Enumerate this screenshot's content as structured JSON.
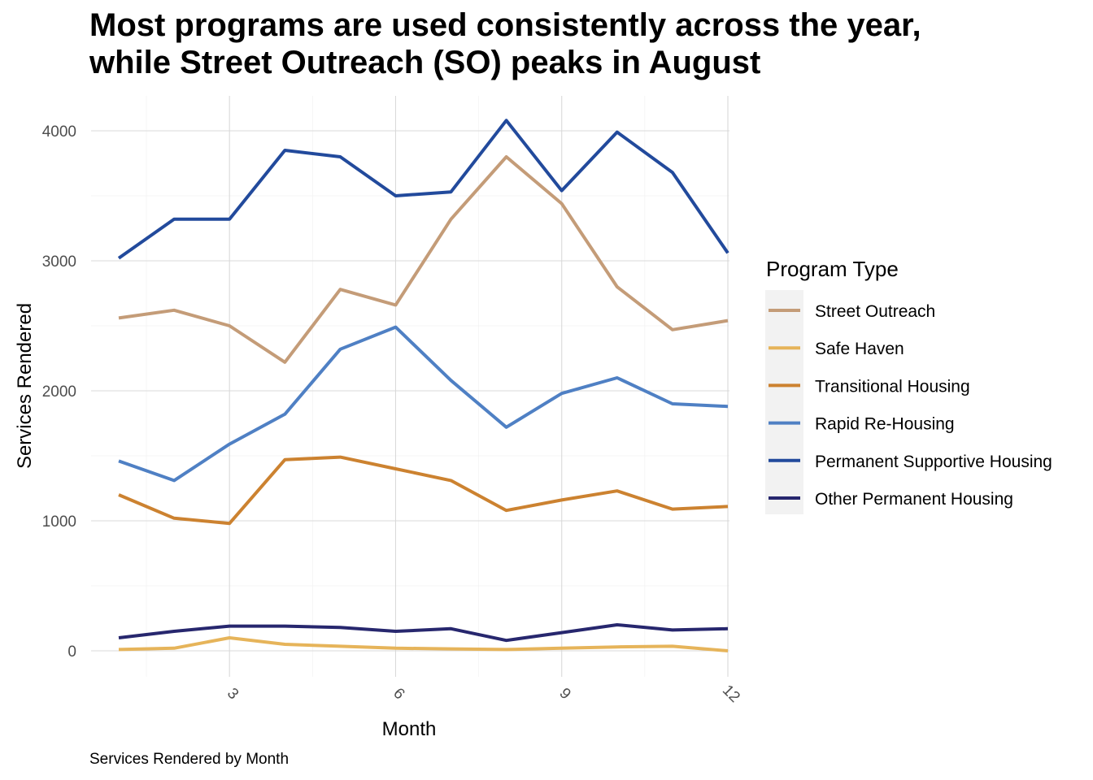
{
  "chart_data": {
    "type": "line",
    "title_lines": [
      "Most programs are used consistently across the year,",
      "while Street Outreach (SO) peaks in August"
    ],
    "caption": "Services Rendered by Month",
    "xlabel": "Month",
    "ylabel": "Services Rendered",
    "x": [
      1,
      2,
      3,
      4,
      5,
      6,
      7,
      8,
      9,
      10,
      11,
      12
    ],
    "x_ticks": [
      3,
      6,
      9,
      12
    ],
    "y_ticks": [
      0,
      1000,
      2000,
      3000,
      4000
    ],
    "xlim": [
      0.5,
      12
    ],
    "ylim": [
      -200,
      4270
    ],
    "grid": true,
    "legend_title": "Program Type",
    "legend_position": "right",
    "series": [
      {
        "name": "Street Outreach",
        "color": "#C49C78",
        "values": [
          2560,
          2620,
          2500,
          2220,
          2780,
          2660,
          3320,
          3800,
          3440,
          2800,
          2470,
          2540
        ]
      },
      {
        "name": "Safe Haven",
        "color": "#E6B45A",
        "values": [
          10,
          20,
          100,
          50,
          35,
          20,
          15,
          10,
          20,
          30,
          35,
          0
        ]
      },
      {
        "name": "Transitional Housing",
        "color": "#CC8230",
        "values": [
          1200,
          1020,
          980,
          1470,
          1490,
          1400,
          1310,
          1080,
          1160,
          1230,
          1090,
          1110
        ]
      },
      {
        "name": "Rapid Re-Housing",
        "color": "#4F80C4",
        "values": [
          1460,
          1310,
          1590,
          1820,
          2320,
          2490,
          2080,
          1720,
          1980,
          2100,
          1900,
          1880
        ]
      },
      {
        "name": "Permanent Supportive Housing",
        "color": "#224A9C",
        "values": [
          3020,
          3320,
          3320,
          3850,
          3800,
          3500,
          3530,
          4080,
          3540,
          3990,
          3680,
          3060
        ]
      },
      {
        "name": "Other Permanent Housing",
        "color": "#27276E",
        "values": [
          100,
          150,
          190,
          190,
          180,
          150,
          170,
          80,
          140,
          200,
          160,
          170
        ]
      }
    ]
  }
}
